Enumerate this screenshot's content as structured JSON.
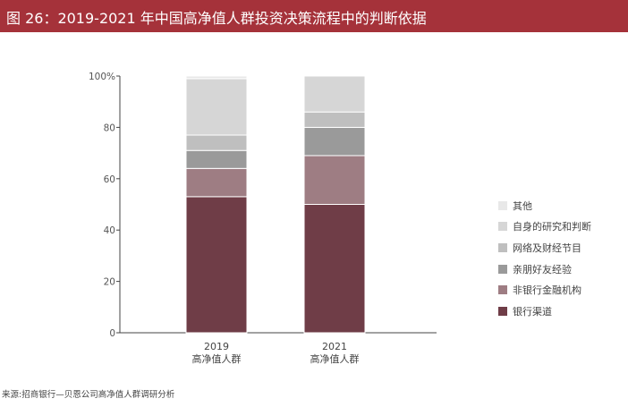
{
  "header": {
    "title": "图 26：2019-2021 年中国高净值人群投资决策流程中的判断依据"
  },
  "source": "来源:招商银行—贝恩公司高净值人群调研分析",
  "chart_data": {
    "type": "bar",
    "stacked": true,
    "title": "",
    "xlabel": "",
    "ylabel": "",
    "ylim": [
      0,
      100
    ],
    "yticks": [
      "0",
      "20",
      "40",
      "60",
      "80",
      "100%"
    ],
    "categories": [
      {
        "year": "2019",
        "group": "高净值人群"
      },
      {
        "year": "2021",
        "group": "高净值人群"
      }
    ],
    "legend_position": "right",
    "series": [
      {
        "name": "银行渠道",
        "color": "#6f3d47",
        "values": [
          53,
          50
        ]
      },
      {
        "name": "非银行金融机构",
        "color": "#9e7d83",
        "values": [
          11,
          19
        ]
      },
      {
        "name": "亲朋好友经验",
        "color": "#9a9a9a",
        "values": [
          7,
          11
        ]
      },
      {
        "name": "网络及财经节目",
        "color": "#bfbfbf",
        "values": [
          6,
          6
        ]
      },
      {
        "name": "自身的研究和判断",
        "color": "#d6d6d6",
        "values": [
          22,
          14
        ]
      },
      {
        "name": "其他",
        "color": "#e8e8e8",
        "values": [
          1,
          0
        ]
      }
    ]
  }
}
